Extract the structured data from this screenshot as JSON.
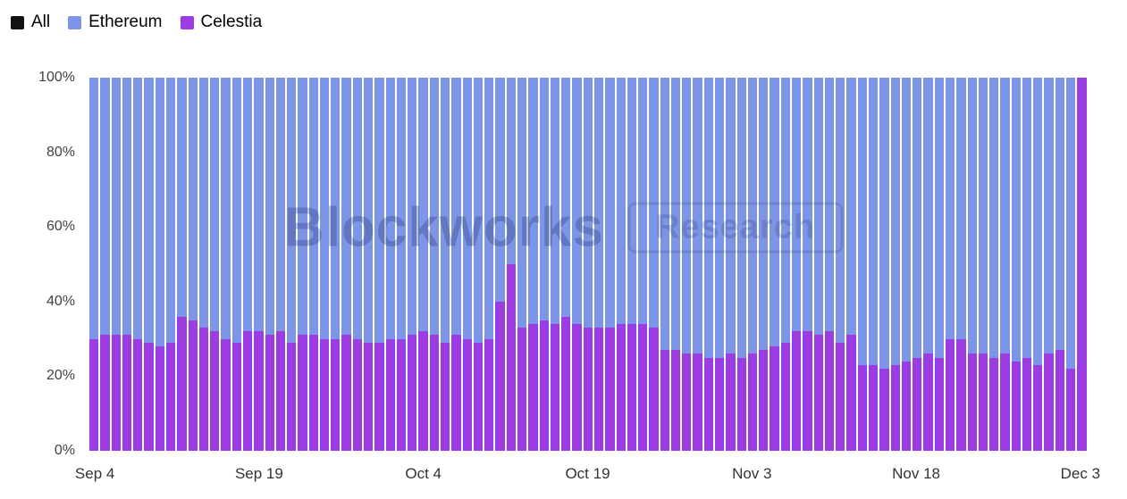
{
  "legend": {
    "items": [
      {
        "label": "All",
        "color": "#111111"
      },
      {
        "label": "Ethereum",
        "color": "#7D95E6"
      },
      {
        "label": "Celestia",
        "color": "#9B3DE3"
      }
    ]
  },
  "watermark": {
    "title": "Blockworks",
    "badge": "Research"
  },
  "chart_data": {
    "type": "bar",
    "subtype": "100pct-stacked-bar",
    "title": "",
    "xlabel": "",
    "ylabel": "",
    "ylim": [
      0,
      100
    ],
    "grid": false,
    "legend_position": "top-left",
    "y_ticks": [
      "0%",
      "20%",
      "40%",
      "60%",
      "80%",
      "100%"
    ],
    "x_tick_labels": [
      "Sep 4",
      "Sep 19",
      "Oct 4",
      "Oct 19",
      "Nov 3",
      "Nov 18",
      "Dec 3"
    ],
    "x_tick_indices": [
      0,
      15,
      30,
      45,
      60,
      75,
      90
    ],
    "categories": [
      "Sep 4",
      "Sep 5",
      "Sep 6",
      "Sep 7",
      "Sep 8",
      "Sep 9",
      "Sep 10",
      "Sep 11",
      "Sep 12",
      "Sep 13",
      "Sep 14",
      "Sep 15",
      "Sep 16",
      "Sep 17",
      "Sep 18",
      "Sep 19",
      "Sep 20",
      "Sep 21",
      "Sep 22",
      "Sep 23",
      "Sep 24",
      "Sep 25",
      "Sep 26",
      "Sep 27",
      "Sep 28",
      "Sep 29",
      "Sep 30",
      "Oct 1",
      "Oct 2",
      "Oct 3",
      "Oct 4",
      "Oct 5",
      "Oct 6",
      "Oct 7",
      "Oct 8",
      "Oct 9",
      "Oct 10",
      "Oct 11",
      "Oct 12",
      "Oct 13",
      "Oct 14",
      "Oct 15",
      "Oct 16",
      "Oct 17",
      "Oct 18",
      "Oct 19",
      "Oct 20",
      "Oct 21",
      "Oct 22",
      "Oct 23",
      "Oct 24",
      "Oct 25",
      "Oct 26",
      "Oct 27",
      "Oct 28",
      "Oct 29",
      "Oct 30",
      "Oct 31",
      "Nov 1",
      "Nov 2",
      "Nov 3",
      "Nov 4",
      "Nov 5",
      "Nov 6",
      "Nov 7",
      "Nov 8",
      "Nov 9",
      "Nov 10",
      "Nov 11",
      "Nov 12",
      "Nov 13",
      "Nov 14",
      "Nov 15",
      "Nov 16",
      "Nov 17",
      "Nov 18",
      "Nov 19",
      "Nov 20",
      "Nov 21",
      "Nov 22",
      "Nov 23",
      "Nov 24",
      "Nov 25",
      "Nov 26",
      "Nov 27",
      "Nov 28",
      "Nov 29",
      "Nov 30",
      "Dec 1",
      "Dec 2",
      "Dec 3"
    ],
    "series": [
      {
        "name": "Celestia",
        "color": "#9B3DE3",
        "values": [
          30,
          31,
          31,
          31,
          30,
          29,
          28,
          29,
          36,
          35,
          33,
          32,
          30,
          29,
          32,
          32,
          31,
          32,
          29,
          31,
          31,
          30,
          30,
          31,
          30,
          29,
          29,
          30,
          30,
          31,
          32,
          31,
          29,
          31,
          30,
          29,
          30,
          40,
          50,
          33,
          34,
          35,
          34,
          36,
          34,
          33,
          33,
          33,
          34,
          34,
          34,
          33,
          27,
          27,
          26,
          26,
          25,
          25,
          26,
          25,
          26,
          27,
          28,
          29,
          32,
          32,
          31,
          32,
          29,
          31,
          23,
          23,
          22,
          23,
          24,
          25,
          26,
          25,
          30,
          30,
          26,
          26,
          25,
          26,
          24,
          25,
          23,
          26,
          27,
          22,
          100
        ]
      },
      {
        "name": "Ethereum",
        "color": "#7D95E6",
        "values": [
          70,
          69,
          69,
          69,
          70,
          71,
          72,
          71,
          64,
          65,
          67,
          68,
          70,
          71,
          68,
          68,
          69,
          68,
          71,
          69,
          69,
          70,
          70,
          69,
          70,
          71,
          71,
          70,
          70,
          69,
          68,
          69,
          71,
          69,
          70,
          71,
          70,
          60,
          50,
          67,
          66,
          65,
          66,
          64,
          66,
          67,
          67,
          67,
          66,
          66,
          66,
          67,
          73,
          73,
          74,
          74,
          75,
          75,
          74,
          75,
          74,
          73,
          72,
          71,
          68,
          68,
          69,
          68,
          71,
          69,
          77,
          77,
          78,
          77,
          76,
          75,
          74,
          75,
          70,
          70,
          74,
          74,
          75,
          74,
          76,
          75,
          77,
          74,
          73,
          78,
          0
        ]
      }
    ]
  }
}
